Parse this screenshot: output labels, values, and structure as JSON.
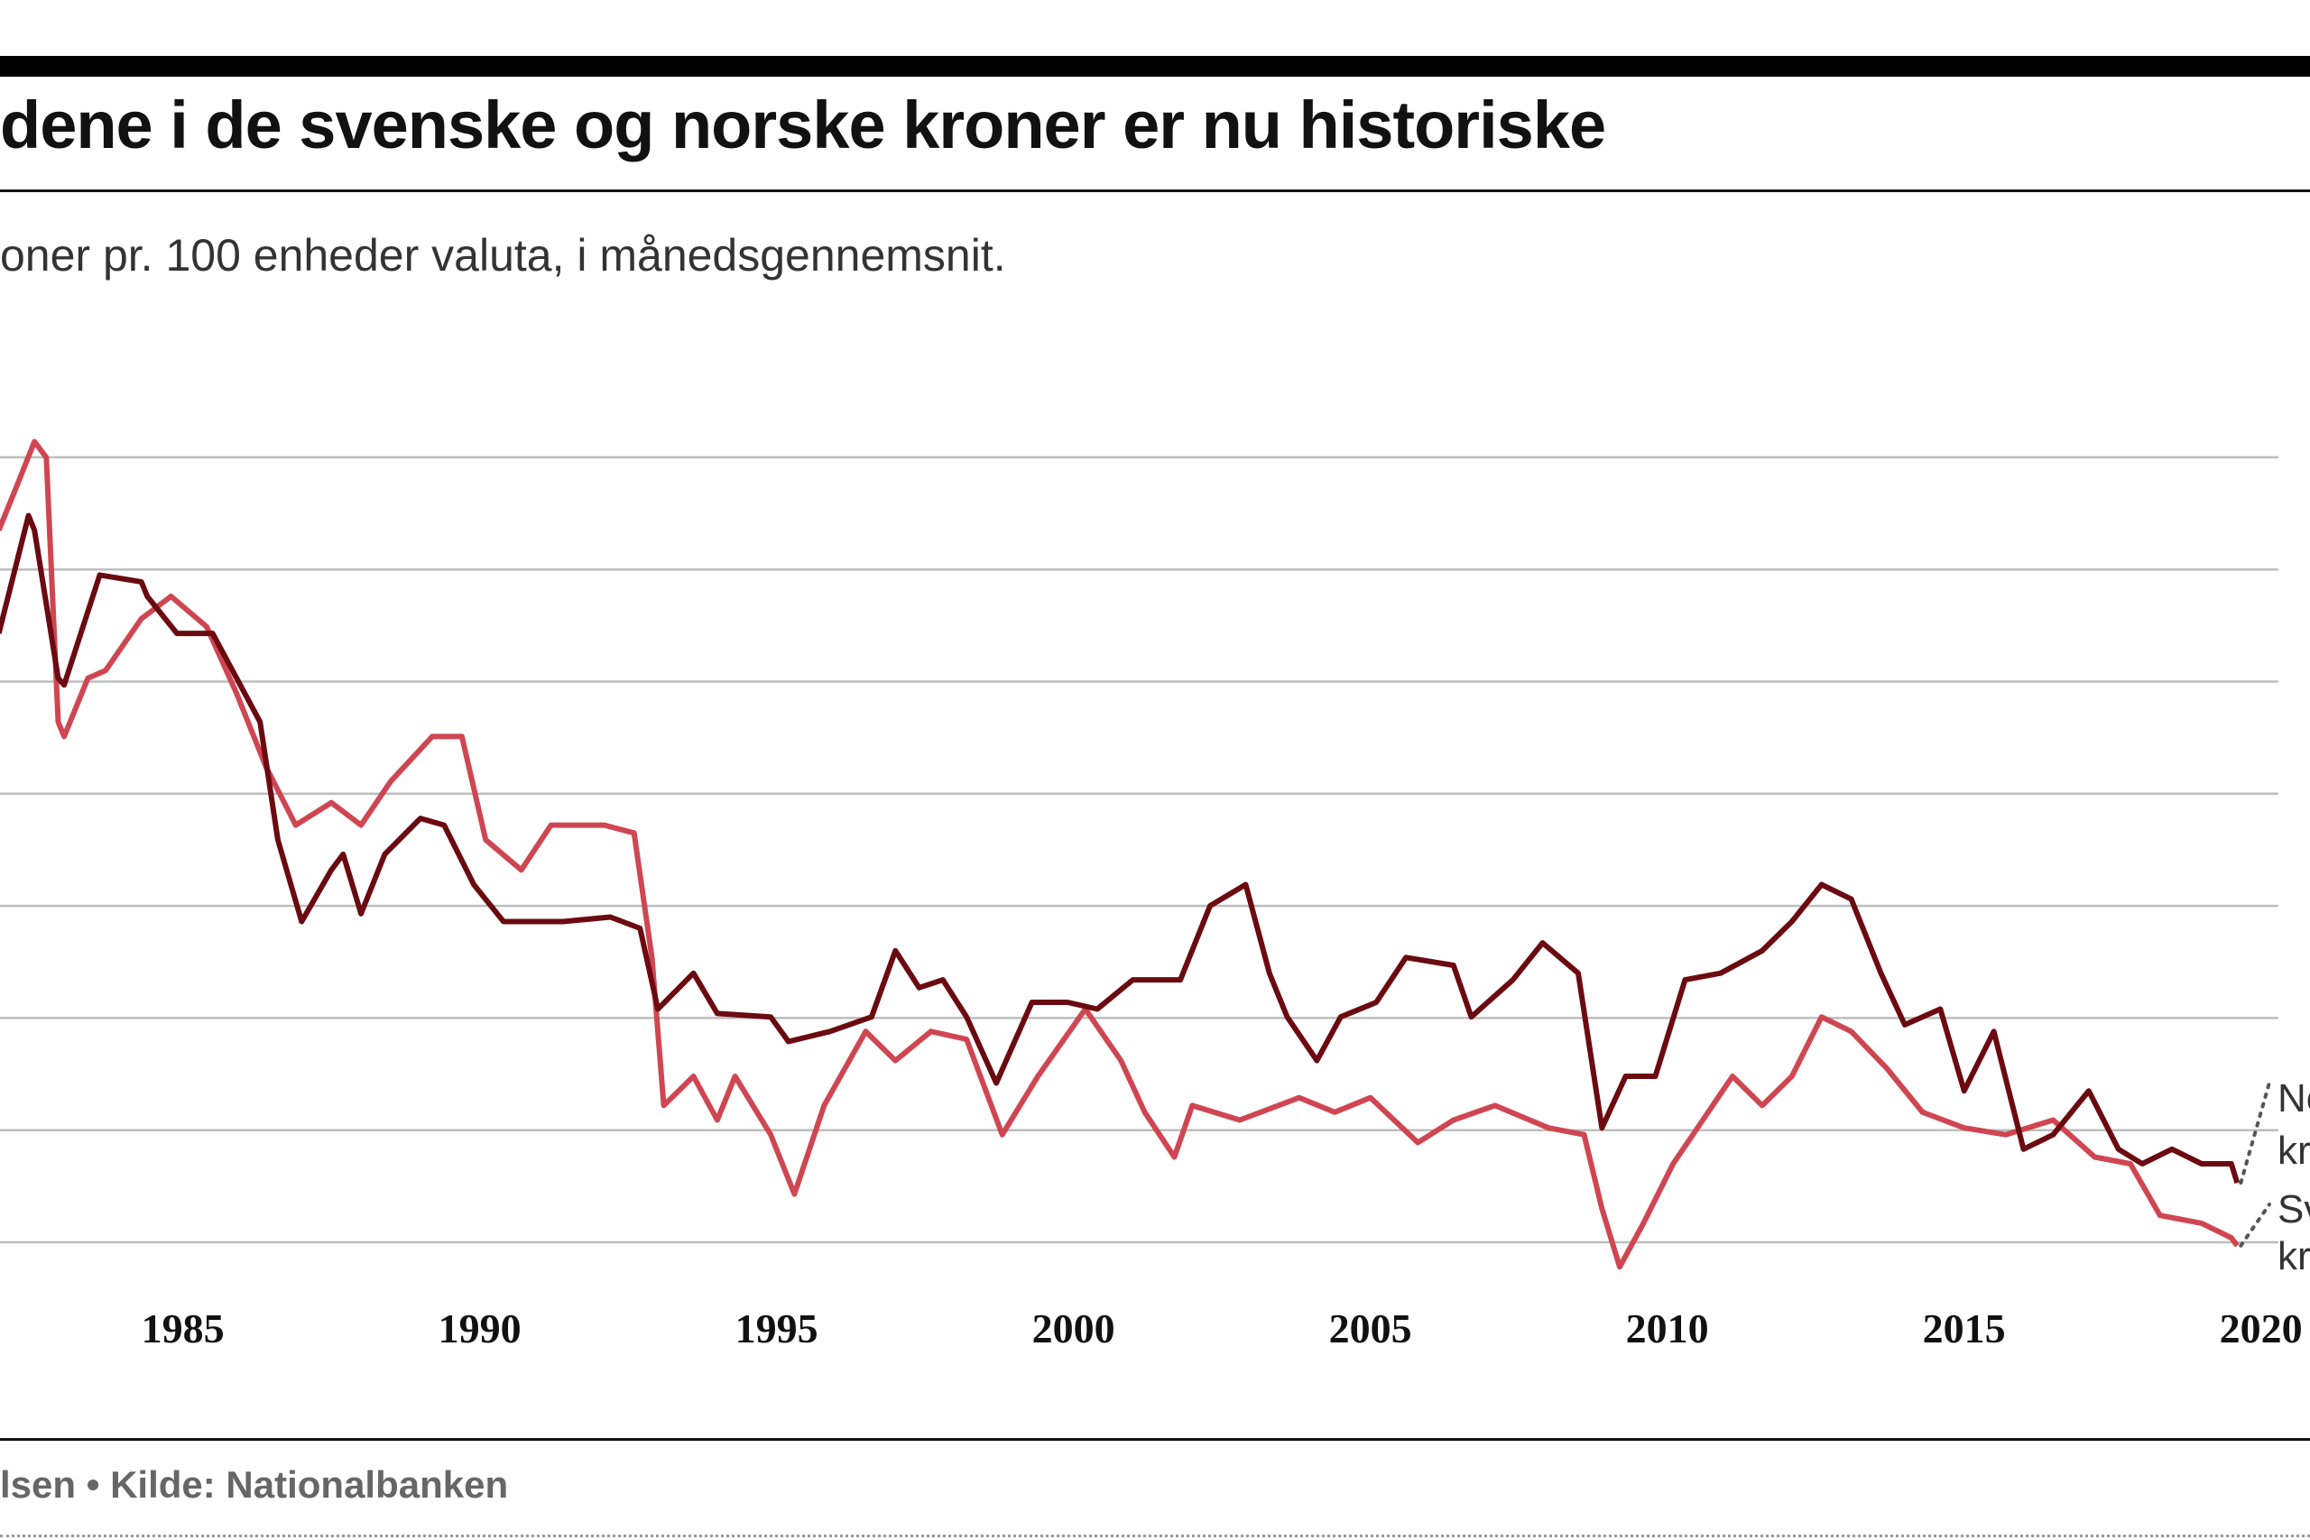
{
  "header": {
    "title": "dene i de svenske og norske kroner er nu historiske",
    "subtitle": "oner pr. 100 enheder valuta, i månedsgennemsnit."
  },
  "footer": {
    "credit": "lsen • Kilde: Nationalbanken"
  },
  "colors": {
    "norske": "#6b0a10",
    "svenske": "#cf4652",
    "grid": "#bdbdbd"
  },
  "chart_data": {
    "type": "line",
    "title": "dene i de svenske og norske kroner er nu historiske",
    "subtitle": "oner pr. 100 enheder valuta, i månedsgennemsnit.",
    "xlabel": "",
    "ylabel": "",
    "xlim": [
      1981.9,
      2020.3
    ],
    "ylim": [
      62,
      148
    ],
    "grid_values": [
      70,
      80,
      90,
      100,
      110,
      120,
      130,
      140
    ],
    "x_ticks": [
      1985,
      1990,
      1995,
      2000,
      2005,
      2010,
      2015,
      2020
    ],
    "x_tick_labels": [
      "1985",
      "1990",
      "1995",
      "2000",
      "2005",
      "2010",
      "2015",
      "2020"
    ],
    "series": [
      {
        "name": "Norske kroner",
        "label": "Norske kroner",
        "points": [
          [
            1981.9,
            124.3
          ],
          [
            1982.4,
            134.8
          ],
          [
            1982.5,
            133.5
          ],
          [
            1982.9,
            120.3
          ],
          [
            1983.0,
            119.7
          ],
          [
            1983.6,
            129.5
          ],
          [
            1984.3,
            128.9
          ],
          [
            1984.4,
            127.6
          ],
          [
            1984.9,
            124.3
          ],
          [
            1985.5,
            124.3
          ],
          [
            1986.3,
            116.4
          ],
          [
            1986.6,
            105.9
          ],
          [
            1987.0,
            98.6
          ],
          [
            1987.5,
            103.2
          ],
          [
            1987.7,
            104.6
          ],
          [
            1988.0,
            99.3
          ],
          [
            1988.4,
            104.6
          ],
          [
            1989.0,
            107.8
          ],
          [
            1989.4,
            107.2
          ],
          [
            1989.9,
            101.9
          ],
          [
            1990.4,
            98.6
          ],
          [
            1991.4,
            98.6
          ],
          [
            1992.2,
            99.0
          ],
          [
            1992.7,
            98.0
          ],
          [
            1993.0,
            90.8
          ],
          [
            1993.6,
            94.0
          ],
          [
            1994.0,
            90.4
          ],
          [
            1994.9,
            90.1
          ],
          [
            1995.2,
            87.9
          ],
          [
            1995.9,
            88.8
          ],
          [
            1996.6,
            90.1
          ],
          [
            1997.0,
            96.0
          ],
          [
            1997.4,
            92.7
          ],
          [
            1997.8,
            93.4
          ],
          [
            1998.2,
            90.1
          ],
          [
            1998.7,
            84.2
          ],
          [
            1999.3,
            91.4
          ],
          [
            1999.9,
            91.4
          ],
          [
            2000.4,
            90.8
          ],
          [
            2001.0,
            93.4
          ],
          [
            2001.8,
            93.4
          ],
          [
            2002.3,
            100.0
          ],
          [
            2002.9,
            101.9
          ],
          [
            2003.3,
            94.0
          ],
          [
            2003.6,
            90.1
          ],
          [
            2004.1,
            86.2
          ],
          [
            2004.5,
            90.1
          ],
          [
            2005.1,
            91.4
          ],
          [
            2005.6,
            95.4
          ],
          [
            2006.4,
            94.7
          ],
          [
            2006.7,
            90.1
          ],
          [
            2007.4,
            93.4
          ],
          [
            2007.9,
            96.7
          ],
          [
            2008.5,
            94.0
          ],
          [
            2008.9,
            80.2
          ],
          [
            2009.3,
            84.8
          ],
          [
            2009.8,
            84.8
          ],
          [
            2010.3,
            93.4
          ],
          [
            2010.9,
            94.0
          ],
          [
            2011.6,
            96.0
          ],
          [
            2012.1,
            98.6
          ],
          [
            2012.6,
            101.9
          ],
          [
            2013.1,
            100.6
          ],
          [
            2013.6,
            94.0
          ],
          [
            2014.0,
            89.4
          ],
          [
            2014.6,
            90.8
          ],
          [
            2015.0,
            83.5
          ],
          [
            2015.5,
            88.8
          ],
          [
            2016.0,
            78.3
          ],
          [
            2016.5,
            79.6
          ],
          [
            2017.1,
            83.5
          ],
          [
            2017.6,
            78.3
          ],
          [
            2018.0,
            77.0
          ],
          [
            2018.5,
            78.3
          ],
          [
            2019.0,
            77.0
          ],
          [
            2019.5,
            77.0
          ],
          [
            2019.6,
            75.3
          ]
        ]
      },
      {
        "name": "Svenske kroner",
        "label": "Svenske kroner",
        "points": [
          [
            1981.9,
            133.5
          ],
          [
            1982.2,
            137.4
          ],
          [
            1982.5,
            141.4
          ],
          [
            1982.7,
            140.0
          ],
          [
            1982.9,
            116.4
          ],
          [
            1983.0,
            115.1
          ],
          [
            1983.4,
            120.3
          ],
          [
            1983.7,
            121.0
          ],
          [
            1984.3,
            125.6
          ],
          [
            1984.8,
            127.6
          ],
          [
            1985.4,
            124.9
          ],
          [
            1985.9,
            119.0
          ],
          [
            1986.4,
            112.4
          ],
          [
            1986.9,
            107.2
          ],
          [
            1987.5,
            109.2
          ],
          [
            1988.0,
            107.2
          ],
          [
            1988.5,
            111.1
          ],
          [
            1989.2,
            115.1
          ],
          [
            1989.7,
            115.1
          ],
          [
            1990.1,
            105.9
          ],
          [
            1990.7,
            103.2
          ],
          [
            1991.2,
            107.2
          ],
          [
            1992.1,
            107.2
          ],
          [
            1992.6,
            106.5
          ],
          [
            1992.9,
            95.4
          ],
          [
            1993.1,
            82.2
          ],
          [
            1993.6,
            84.8
          ],
          [
            1994.0,
            80.9
          ],
          [
            1994.3,
            84.8
          ],
          [
            1994.9,
            79.6
          ],
          [
            1995.3,
            74.3
          ],
          [
            1995.8,
            82.2
          ],
          [
            1996.5,
            88.8
          ],
          [
            1997.0,
            86.2
          ],
          [
            1997.6,
            88.8
          ],
          [
            1998.2,
            88.1
          ],
          [
            1998.8,
            79.6
          ],
          [
            1999.4,
            84.8
          ],
          [
            2000.2,
            90.8
          ],
          [
            2000.8,
            86.2
          ],
          [
            2001.2,
            81.6
          ],
          [
            2001.7,
            77.6
          ],
          [
            2002.0,
            82.2
          ],
          [
            2002.8,
            80.9
          ],
          [
            2003.8,
            82.9
          ],
          [
            2004.4,
            81.6
          ],
          [
            2005.0,
            82.9
          ],
          [
            2005.8,
            78.9
          ],
          [
            2006.4,
            80.9
          ],
          [
            2007.1,
            82.2
          ],
          [
            2008.0,
            80.2
          ],
          [
            2008.6,
            79.6
          ],
          [
            2008.9,
            73.0
          ],
          [
            2009.2,
            67.8
          ],
          [
            2009.6,
            71.7
          ],
          [
            2010.1,
            77.0
          ],
          [
            2010.6,
            80.9
          ],
          [
            2011.1,
            84.8
          ],
          [
            2011.6,
            82.2
          ],
          [
            2012.1,
            84.8
          ],
          [
            2012.6,
            90.1
          ],
          [
            2013.1,
            88.8
          ],
          [
            2013.7,
            85.5
          ],
          [
            2014.3,
            81.6
          ],
          [
            2015.0,
            80.2
          ],
          [
            2015.7,
            79.6
          ],
          [
            2016.5,
            80.9
          ],
          [
            2017.2,
            77.6
          ],
          [
            2017.8,
            77.0
          ],
          [
            2018.3,
            72.4
          ],
          [
            2019.0,
            71.7
          ],
          [
            2019.5,
            70.4
          ],
          [
            2019.6,
            69.7
          ]
        ]
      }
    ]
  }
}
